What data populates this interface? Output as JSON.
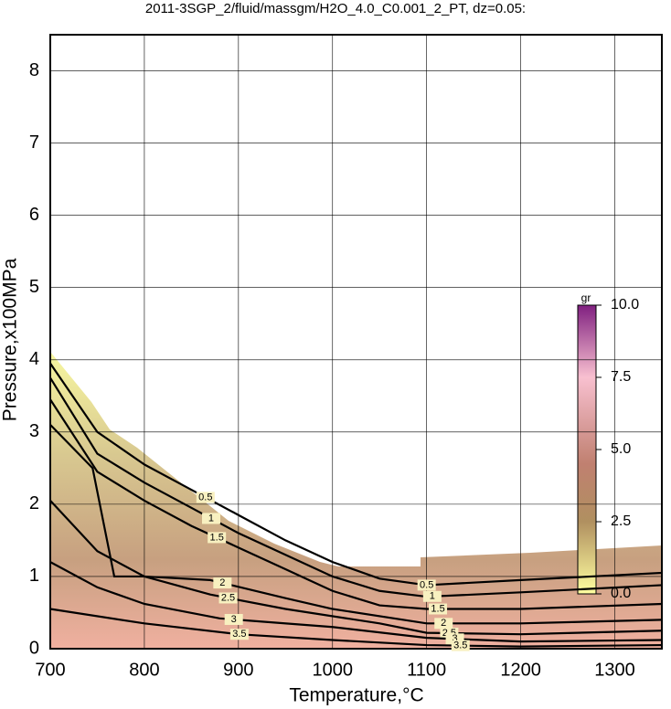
{
  "chart_data": {
    "type": "contour",
    "title": "2011-3SGP_2/fluid/massgm/H2O_4.0_C0.001_2_PT, dz=0.05:",
    "x_label": "Temperature,°C",
    "y_label": "Pressure,x100MPa",
    "xlim": [
      700,
      1350
    ],
    "ylim": [
      0,
      8.5
    ],
    "xticks": [
      700,
      800,
      900,
      1000,
      1100,
      1200,
      1300
    ],
    "yticks": [
      0,
      1,
      2,
      3,
      4,
      5,
      6,
      7,
      8
    ],
    "grid": true,
    "series": [
      {
        "name": "0.5",
        "color": "#000000",
        "x": [
          700,
          750,
          800,
          850,
          900,
          950,
          1000,
          1050,
          1100,
          1200,
          1350
        ],
        "values": [
          3.95,
          3.0,
          2.55,
          2.2,
          1.85,
          1.5,
          1.2,
          0.97,
          0.88,
          0.95,
          1.05
        ]
      },
      {
        "name": "1",
        "color": "#000000",
        "x": [
          700,
          750,
          800,
          850,
          900,
          950,
          1000,
          1050,
          1100,
          1200,
          1350
        ],
        "values": [
          3.75,
          2.7,
          2.3,
          1.95,
          1.6,
          1.3,
          1.0,
          0.8,
          0.72,
          0.78,
          0.88
        ]
      },
      {
        "name": "1.5",
        "color": "#000000",
        "x": [
          700,
          750,
          800,
          850,
          900,
          950,
          1000,
          1050,
          1100,
          1200,
          1350
        ],
        "values": [
          3.45,
          2.45,
          2.05,
          1.7,
          1.4,
          1.1,
          0.8,
          0.6,
          0.55,
          0.55,
          0.62
        ]
      },
      {
        "name": "2",
        "color": "#000000",
        "x": [
          700,
          745,
          768,
          800,
          870,
          950,
          1000,
          1100,
          1200,
          1350
        ],
        "values": [
          3.1,
          2.5,
          1.0,
          1.0,
          0.95,
          0.7,
          0.55,
          0.35,
          0.35,
          0.4
        ]
      },
      {
        "name": "2.5",
        "color": "#000000",
        "x": [
          700,
          750,
          800,
          870,
          950,
          1050,
          1100,
          1200,
          1350
        ],
        "values": [
          2.05,
          1.35,
          1.0,
          0.75,
          0.55,
          0.35,
          0.22,
          0.2,
          0.25
        ]
      },
      {
        "name": "3",
        "color": "#000000",
        "x": [
          700,
          750,
          800,
          880,
          1000,
          1100,
          1200,
          1350
        ],
        "values": [
          1.2,
          0.85,
          0.62,
          0.42,
          0.3,
          0.15,
          0.1,
          0.12
        ]
      },
      {
        "name": "3.5",
        "color": "#000000",
        "x": [
          700,
          800,
          900,
          1000,
          1100,
          1200,
          1350
        ],
        "values": [
          0.55,
          0.35,
          0.2,
          0.12,
          0.05,
          0.03,
          0.05
        ]
      }
    ],
    "colorbar": {
      "label": "gr",
      "lim": [
        0,
        10
      ],
      "ticks": [
        {
          "value": 0,
          "label": "0.0"
        },
        {
          "value": 2.5,
          "label": "2.5"
        },
        {
          "value": 5,
          "label": "5.0"
        },
        {
          "value": 7.5,
          "label": "7.5"
        },
        {
          "value": 10,
          "label": "10.0"
        }
      ]
    }
  }
}
